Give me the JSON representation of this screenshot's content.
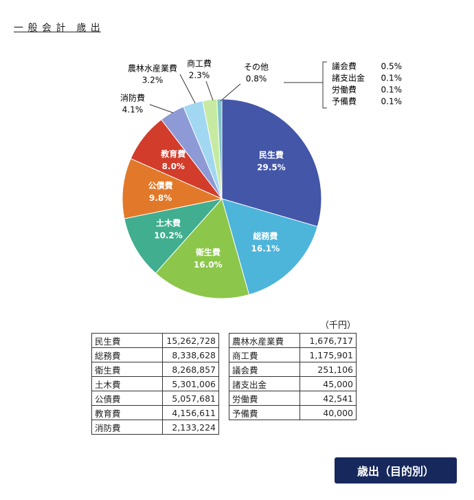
{
  "title": "一 般 会 計　歳 出",
  "chart_data": {
    "type": "pie",
    "categories": [
      "民生費",
      "総務費",
      "衛生費",
      "土木費",
      "公債費",
      "教育費",
      "消防費",
      "農林水産業費",
      "商工費",
      "その他"
    ],
    "values": [
      29.5,
      16.1,
      16.0,
      10.2,
      9.8,
      8.0,
      4.1,
      3.2,
      2.3,
      0.8
    ],
    "value_labels": [
      "29.5%",
      "16.1%",
      "16.0%",
      "10.2%",
      "9.8%",
      "8.0%",
      "4.1%",
      "3.2%",
      "2.3%",
      "0.8%"
    ],
    "colors": [
      "#4356a8",
      "#4db4da",
      "#8cc64b",
      "#40ae8f",
      "#e2792a",
      "#d23c2a",
      "#8d9ad6",
      "#a2d7f1",
      "#c7eaa2",
      "#7fc4c9"
    ]
  },
  "other_breakdown": [
    [
      "議会費",
      "0.5%"
    ],
    [
      "諸支出金",
      "0.1%"
    ],
    [
      "労働費",
      "0.1%"
    ],
    [
      "予備費",
      "0.1%"
    ]
  ],
  "unit": "（千円）",
  "table_left": [
    [
      "民生費",
      "15,262,728"
    ],
    [
      "総務費",
      "8,338,628"
    ],
    [
      "衛生費",
      "8,268,857"
    ],
    [
      "土木費",
      "5,301,006"
    ],
    [
      "公債費",
      "5,057,681"
    ],
    [
      "教育費",
      "4,156,611"
    ],
    [
      "消防費",
      "2,133,224"
    ]
  ],
  "table_right": [
    [
      "農林水産業費",
      "1,676,717"
    ],
    [
      "商工費",
      "1,175,901"
    ],
    [
      "議会費",
      "251,106"
    ],
    [
      "諸支出金",
      "45,000"
    ],
    [
      "労働費",
      "42,541"
    ],
    [
      "予備費",
      "40,000"
    ]
  ],
  "badge": "歳出（目的別）"
}
